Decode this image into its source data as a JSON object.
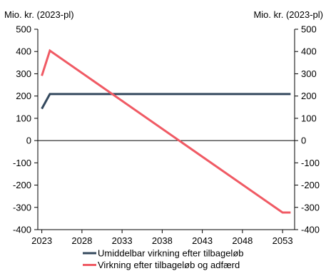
{
  "chart_data": {
    "type": "line",
    "y_unit_left": "Mio. kr. (2023-pl)",
    "y_unit_right": "Mio. kr. (2023-pl)",
    "ylim": [
      -400,
      500
    ],
    "yticks": [
      -400,
      -300,
      -200,
      -100,
      0,
      100,
      200,
      300,
      400,
      500
    ],
    "xlim": [
      2022.5,
      2054.5
    ],
    "xticks": [
      2023,
      2028,
      2033,
      2038,
      2043,
      2048,
      2053
    ],
    "grid": false,
    "zero_line": true,
    "legend_position": "bottom",
    "series": [
      {
        "name": "Umiddelbar virkning efter tilbageløb",
        "color": "#34495e",
        "x": [
          2023,
          2024,
          2054
        ],
        "y": [
          143,
          209,
          209
        ]
      },
      {
        "name": "Virkning efter tilbageløb og adfærd",
        "color": "#f05a64",
        "x": [
          2023,
          2024,
          2053,
          2054
        ],
        "y": [
          291,
          404,
          -323,
          -323
        ]
      }
    ]
  }
}
